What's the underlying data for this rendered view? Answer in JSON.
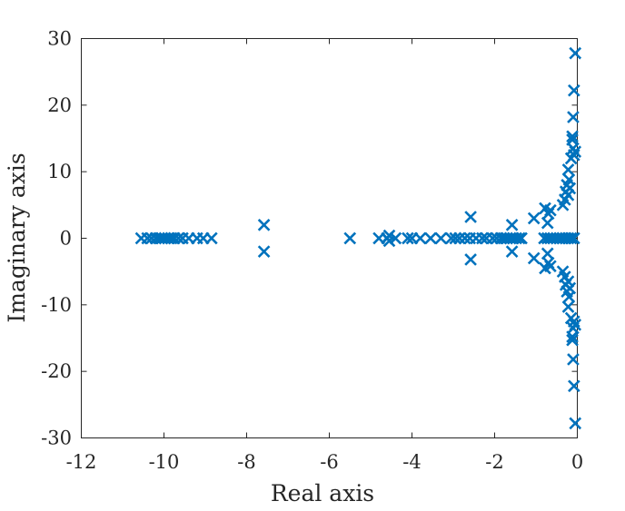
{
  "chart_data": {
    "type": "scatter",
    "xlabel": "Real axis",
    "ylabel": "Imaginary axis",
    "xlim": [
      -12,
      0
    ],
    "ylim": [
      -30,
      30
    ],
    "xticks": [
      "-12",
      "-10",
      "-8",
      "-6",
      "-4",
      "-2",
      "0"
    ],
    "yticks": [
      "-30",
      "-20",
      "-10",
      "0",
      "10",
      "20",
      "30"
    ],
    "grid": false,
    "marker": "x",
    "color": "#0072BD",
    "series": [
      {
        "points": [
          [
            -10.55,
            0
          ],
          [
            -10.4,
            0
          ],
          [
            -10.3,
            0
          ],
          [
            -10.2,
            0
          ],
          [
            -10.12,
            0
          ],
          [
            -10.05,
            0
          ],
          [
            -9.98,
            0
          ],
          [
            -9.9,
            0
          ],
          [
            -9.82,
            0
          ],
          [
            -9.75,
            0
          ],
          [
            -9.65,
            0
          ],
          [
            -9.55,
            0
          ],
          [
            -9.4,
            0
          ],
          [
            -9.2,
            0
          ],
          [
            -9.05,
            0
          ],
          [
            -8.85,
            0
          ],
          [
            -7.58,
            2.0
          ],
          [
            -7.58,
            -2.0
          ],
          [
            -5.5,
            0
          ],
          [
            -4.8,
            0
          ],
          [
            -4.6,
            0
          ],
          [
            -4.55,
            0.4
          ],
          [
            -4.55,
            -0.4
          ],
          [
            -4.4,
            0
          ],
          [
            -4.1,
            0
          ],
          [
            -4.0,
            0
          ],
          [
            -3.8,
            0
          ],
          [
            -3.55,
            0
          ],
          [
            -3.3,
            0
          ],
          [
            -3.05,
            0
          ],
          [
            -2.95,
            0
          ],
          [
            -2.85,
            0
          ],
          [
            -2.72,
            0
          ],
          [
            -2.6,
            0
          ],
          [
            -2.58,
            3.2
          ],
          [
            -2.58,
            -3.2
          ],
          [
            -2.45,
            0
          ],
          [
            -2.3,
            0
          ],
          [
            -2.2,
            0
          ],
          [
            -2.05,
            0
          ],
          [
            -1.95,
            0
          ],
          [
            -1.85,
            0
          ],
          [
            -1.78,
            0
          ],
          [
            -1.7,
            0
          ],
          [
            -1.62,
            0
          ],
          [
            -1.55,
            0
          ],
          [
            -1.48,
            0
          ],
          [
            -1.4,
            0
          ],
          [
            -1.35,
            0
          ],
          [
            -1.58,
            2.0
          ],
          [
            -1.58,
            -2.0
          ],
          [
            -1.05,
            3.0
          ],
          [
            -1.05,
            -3.0
          ],
          [
            -0.78,
            4.5
          ],
          [
            -0.78,
            -4.5
          ],
          [
            -0.7,
            3.7
          ],
          [
            -0.7,
            -3.7
          ],
          [
            -0.65,
            4.2
          ],
          [
            -0.65,
            -4.2
          ],
          [
            -0.72,
            2.3
          ],
          [
            -0.72,
            -2.3
          ],
          [
            -0.8,
            0
          ],
          [
            -0.72,
            0
          ],
          [
            -0.65,
            0
          ],
          [
            -0.58,
            0
          ],
          [
            -0.5,
            0
          ],
          [
            -0.42,
            0
          ],
          [
            -0.35,
            0
          ],
          [
            -0.28,
            0
          ],
          [
            -0.22,
            0
          ],
          [
            -0.15,
            0
          ],
          [
            -0.08,
            0
          ],
          [
            -0.35,
            5.0
          ],
          [
            -0.35,
            -5.0
          ],
          [
            -0.3,
            5.8
          ],
          [
            -0.3,
            -5.8
          ],
          [
            -0.28,
            7.0
          ],
          [
            -0.28,
            -7.0
          ],
          [
            -0.25,
            8.0
          ],
          [
            -0.25,
            -8.0
          ],
          [
            -0.22,
            6.5
          ],
          [
            -0.22,
            -6.5
          ],
          [
            -0.2,
            8.8
          ],
          [
            -0.2,
            -8.8
          ],
          [
            -0.22,
            10.3
          ],
          [
            -0.22,
            -10.3
          ],
          [
            -0.18,
            7.5
          ],
          [
            -0.18,
            -7.5
          ],
          [
            -0.15,
            12.0
          ],
          [
            -0.15,
            -12.0
          ],
          [
            -0.12,
            14.8
          ],
          [
            -0.12,
            -14.8
          ],
          [
            -0.12,
            15.3
          ],
          [
            -0.12,
            -15.3
          ],
          [
            -0.1,
            13.5
          ],
          [
            -0.1,
            -13.5
          ],
          [
            -0.08,
            12.5
          ],
          [
            -0.08,
            -12.5
          ],
          [
            -0.05,
            13.0
          ],
          [
            -0.05,
            -13.0
          ],
          [
            -0.1,
            18.2
          ],
          [
            -0.1,
            -18.2
          ],
          [
            -0.08,
            22.2
          ],
          [
            -0.08,
            -22.2
          ],
          [
            -0.05,
            27.8
          ],
          [
            -0.05,
            -27.8
          ]
        ]
      }
    ]
  }
}
